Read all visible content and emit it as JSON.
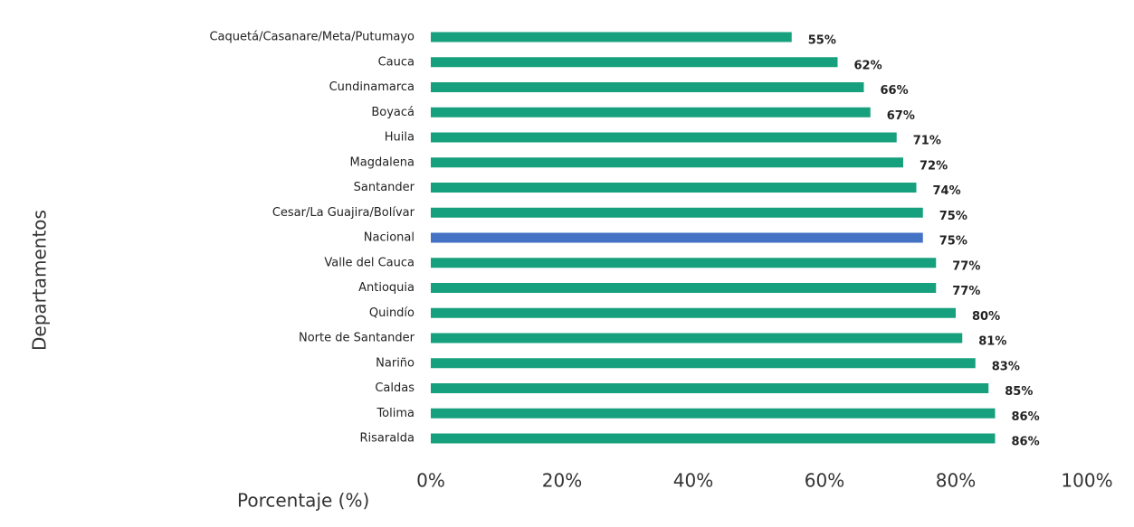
{
  "chart_data": {
    "type": "bar",
    "orientation": "horizontal",
    "categories": [
      "Caquetá/Casanare/Meta/Putumayo",
      "Cauca",
      "Cundinamarca",
      "Boyacá",
      "Huila",
      "Magdalena",
      "Santander",
      "Cesar/La Guajira/Bolívar",
      "Nacional",
      "Valle del Cauca",
      "Antioquia",
      "Quindío",
      "Norte de Santander",
      "Nariño",
      "Caldas",
      "Tolima",
      "Risaralda"
    ],
    "values": [
      55,
      62,
      66,
      67,
      71,
      72,
      74,
      75,
      75,
      77,
      77,
      80,
      81,
      83,
      85,
      86,
      86
    ],
    "value_labels": [
      "55%",
      "62%",
      "66%",
      "67%",
      "71%",
      "72%",
      "74%",
      "75%",
      "75%",
      "77%",
      "77%",
      "80%",
      "81%",
      "83%",
      "85%",
      "86%",
      "86%"
    ],
    "colors": [
      "#17a07d",
      "#17a07d",
      "#17a07d",
      "#17a07d",
      "#17a07d",
      "#17a07d",
      "#17a07d",
      "#17a07d",
      "#4472c4",
      "#17a07d",
      "#17a07d",
      "#17a07d",
      "#17a07d",
      "#17a07d",
      "#17a07d",
      "#17a07d",
      "#17a07d"
    ],
    "xlabel": "Porcentaje (%)",
    "ylabel": "Departamentos",
    "xlim": [
      0,
      100
    ],
    "xticks": [
      {
        "value": 0,
        "label": "0%"
      },
      {
        "value": 20,
        "label": "20%"
      },
      {
        "value": 40,
        "label": "40%"
      },
      {
        "value": 60,
        "label": "60%"
      },
      {
        "value": 80,
        "label": "80%"
      },
      {
        "value": 100,
        "label": "100%"
      }
    ],
    "grid": false
  }
}
